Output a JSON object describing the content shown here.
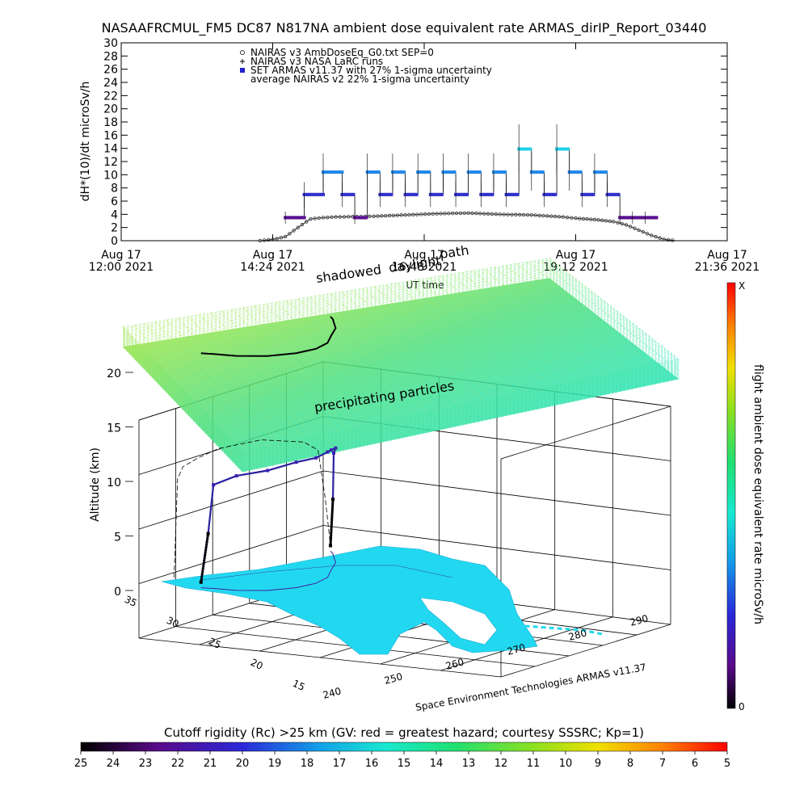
{
  "chart_data": [
    {
      "type": "scatter",
      "title": "NASAAFRCMUL_FM5 DC87 N817NA ambient dose equivalent rate ARMAS_dirIP_Report_03440",
      "xlabel": "UT time",
      "ylabel": "dH*(10)/dt microSv/h",
      "ylim": [
        0,
        30
      ],
      "yticks": [
        "0",
        "2",
        "4",
        "6",
        "8",
        "10",
        "12",
        "14",
        "16",
        "18",
        "20",
        "22",
        "24",
        "26",
        "28",
        "30"
      ],
      "xlim": [
        "2021-08-17T12:00",
        "2021-08-17T21:36"
      ],
      "xticks": [
        {
          "line1": "Aug 17",
          "line2": "12:00 2021"
        },
        {
          "line1": "Aug 17",
          "line2": "14:24 2021"
        },
        {
          "line1": "Aug 17",
          "line2": "16:48 2021"
        },
        {
          "line1": "Aug 17",
          "line2": "19:12 2021"
        },
        {
          "line1": "Aug 17",
          "line2": "21:36 2021"
        }
      ],
      "legend": [
        {
          "label": "NAIRAS v3 AmbDoseEq_G0.txt SEP=0",
          "marker": "circle",
          "color": "#333333"
        },
        {
          "label": "NAIRAS v3 NASA LaRC runs",
          "marker": "plus",
          "color": "#000000"
        },
        {
          "label": "SET ARMAS v11.37 with 27% 1-sigma uncertainty",
          "marker": "square",
          "color": "#2222cc"
        },
        {
          "label": "average NAIRAS v2 22% 1-sigma uncertainty",
          "marker": "none",
          "color": "#000000"
        }
      ],
      "series": [
        {
          "name": "NAIRAS v3 AmbDoseEq_G0.txt SEP=0",
          "x_hours": [
            14.2,
            14.4,
            14.6,
            14.8,
            15.0,
            15.2,
            15.4,
            16.0,
            16.5,
            17.0,
            17.5,
            18.0,
            18.5,
            19.0,
            19.2,
            19.5,
            19.8,
            20.0,
            20.2,
            20.4,
            20.6,
            20.8
          ],
          "values": [
            0.0,
            0.2,
            0.6,
            2.0,
            3.3,
            3.5,
            3.6,
            3.7,
            3.9,
            4.1,
            4.2,
            4.0,
            3.9,
            3.6,
            3.4,
            3.2,
            2.9,
            2.4,
            1.6,
            0.8,
            0.2,
            0.0
          ]
        },
        {
          "name": "NAIRAS v3 NASA LaRC runs",
          "x_hours": [
            14.2,
            14.6,
            15.0,
            15.4,
            15.8,
            16.2,
            16.6,
            17.0,
            17.4,
            17.8,
            18.2,
            18.6,
            19.0,
            19.4,
            19.8,
            20.2,
            20.6,
            20.9
          ],
          "values": [
            0.0,
            0.0,
            0.0,
            0.0,
            0.0,
            0.0,
            0.0,
            0.0,
            0.0,
            0.0,
            0.0,
            0.0,
            0.0,
            0.0,
            0.0,
            0.0,
            0.0,
            0.0
          ]
        },
        {
          "name": "SET ARMAS v11.37 with 27% 1-sigma uncertainty",
          "x_hours": [
            14.6,
            14.9,
            15.2,
            15.5,
            15.7,
            15.9,
            16.1,
            16.3,
            16.5,
            16.7,
            16.9,
            17.1,
            17.3,
            17.5,
            17.7,
            17.9,
            18.1,
            18.3,
            18.5,
            18.7,
            18.9,
            19.1,
            19.3,
            19.5,
            19.7,
            19.9,
            20.1,
            20.3
          ],
          "values": [
            3.5,
            7.0,
            10.4,
            7.0,
            3.5,
            10.4,
            7.0,
            10.4,
            7.0,
            10.4,
            7.0,
            10.4,
            7.0,
            10.4,
            7.0,
            10.4,
            7.0,
            13.9,
            10.4,
            7.0,
            13.9,
            10.4,
            7.0,
            10.4,
            7.0,
            3.5,
            3.5,
            3.5
          ]
        }
      ]
    },
    {
      "type": "3d-scatter",
      "annotations": [
        "shadowed",
        "daylight",
        "path",
        "precipitating particles"
      ],
      "zlabel": "Altitude (km)",
      "zticks": [
        "0",
        "5",
        "10",
        "15",
        "20"
      ],
      "lat_ticks": [
        "35",
        "30",
        "25",
        "20",
        "15"
      ],
      "lon_ticks": [
        "240",
        "250",
        "260",
        "270",
        "280",
        "290"
      ],
      "credit": "Space Environment Technologies ARMAS v11.37",
      "colorbar": {
        "label": "flight ambient dose equivalent rate microSv/h",
        "max_label": "X",
        "min_label": "0"
      },
      "cutoff_bar": {
        "label": "Cutoff rigidity (Rc) >25 km (GV: red = greatest hazard; courtesy SSSRC; Kp=1)",
        "ticks": [
          "25",
          "24",
          "23",
          "22",
          "21",
          "20",
          "19",
          "18",
          "17",
          "16",
          "15",
          "14",
          "13",
          "12",
          "11",
          "10",
          "9",
          "8",
          "7",
          "6",
          "5"
        ]
      },
      "flight_track": {
        "lon": [
          243.5,
          244.0,
          244.5,
          246.0,
          250.0,
          256.0,
          262.0,
          268.0,
          274.0,
          280.0,
          284.0,
          286.0,
          287.5
        ],
        "lat": [
          33.5,
          33.2,
          33.0,
          32.0,
          31.0,
          30.5,
          30.5,
          31.0,
          32.0,
          33.0,
          34.0,
          34.5,
          35.0
        ],
        "alt_km": [
          0.5,
          5.0,
          9.5,
          10.5,
          11.0,
          11.5,
          11.5,
          11.5,
          11.0,
          10.5,
          9.5,
          5.0,
          0.5
        ]
      }
    }
  ]
}
